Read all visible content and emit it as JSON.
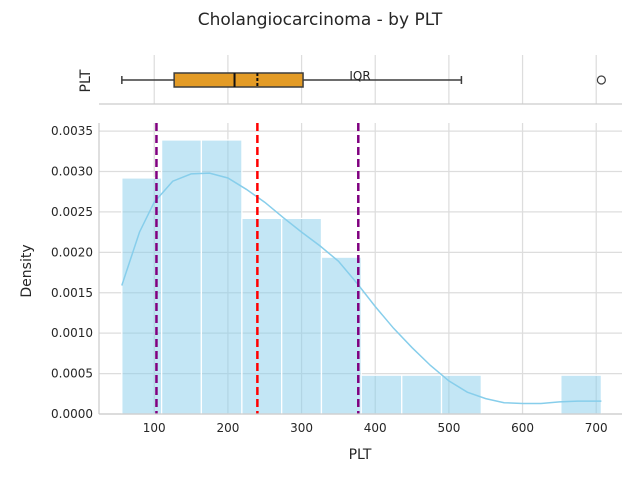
{
  "chart_data": {
    "type": "histogram",
    "title": "Cholangiocarcinoma - by PLT",
    "xlabel": "PLT",
    "ylabel": "Density",
    "xlim": [
      25,
      735
    ],
    "ylim": [
      0,
      0.0036
    ],
    "xticks": [
      100,
      200,
      300,
      400,
      500,
      600,
      700
    ],
    "yticks": [
      0.0,
      0.0005,
      0.001,
      0.0015,
      0.002,
      0.0025,
      0.003,
      0.0035
    ],
    "ytick_labels": [
      "0.0000",
      "0.0005",
      "0.0010",
      "0.0015",
      "0.0020",
      "0.0025",
      "0.0030",
      "0.0035"
    ],
    "grid": true,
    "histogram": {
      "color": "#87CEEB",
      "bins": [
        {
          "x0": 56,
          "x1": 110,
          "density": 0.00292
        },
        {
          "x0": 110,
          "x1": 164,
          "density": 0.00339
        },
        {
          "x0": 164,
          "x1": 219,
          "density": 0.00339
        },
        {
          "x0": 219,
          "x1": 273,
          "density": 0.00242
        },
        {
          "x0": 273,
          "x1": 327,
          "density": 0.00242
        },
        {
          "x0": 327,
          "x1": 381,
          "density": 0.00194
        },
        {
          "x0": 381,
          "x1": 436,
          "density": 0.00048
        },
        {
          "x0": 436,
          "x1": 490,
          "density": 0.00048
        },
        {
          "x0": 490,
          "x1": 544,
          "density": 0.00048
        },
        {
          "x0": 544,
          "x1": 598,
          "density": 0.0
        },
        {
          "x0": 598,
          "x1": 652,
          "density": 0.0
        },
        {
          "x0": 652,
          "x1": 707,
          "density": 0.00048
        }
      ]
    },
    "kde": {
      "color": "#87CEEB",
      "x": [
        56,
        80,
        100,
        125,
        150,
        175,
        200,
        225,
        250,
        275,
        300,
        325,
        350,
        375,
        400,
        425,
        450,
        475,
        500,
        525,
        550,
        575,
        600,
        625,
        650,
        675,
        707
      ],
      "y": [
        0.00159,
        0.00225,
        0.00262,
        0.00288,
        0.00297,
        0.00298,
        0.00292,
        0.00278,
        0.00262,
        0.00243,
        0.00225,
        0.00208,
        0.00189,
        0.00162,
        0.00133,
        0.00106,
        0.00082,
        0.0006,
        0.00041,
        0.00027,
        0.00019,
        0.00014,
        0.00013,
        0.00013,
        0.00015,
        0.00016,
        0.00016
      ]
    },
    "reference_lines": [
      {
        "x": 103,
        "color": "#800080",
        "style": "dashed"
      },
      {
        "x": 240,
        "color": "#FF0000",
        "style": "dashed"
      },
      {
        "x": 377,
        "color": "#800080",
        "style": "dashed"
      }
    ],
    "boxplot": {
      "ylabel": "PLT",
      "whisker_low": 56,
      "q1": 127,
      "median": 209,
      "mean": 240,
      "q3": 302,
      "whisker_high": 517,
      "outliers": [
        707
      ],
      "box_color": "#E39B26",
      "annotation": "IQR"
    }
  }
}
